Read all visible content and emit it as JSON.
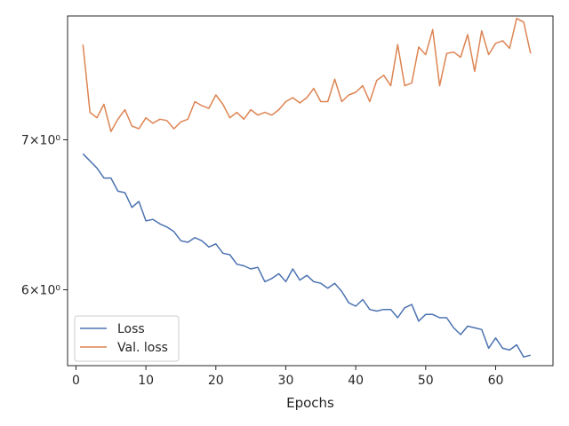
{
  "chart_data": {
    "type": "line",
    "title": "",
    "xlabel": "Epochs",
    "ylabel": "",
    "xlim": [
      -1.2,
      68.2
    ],
    "ylim": [
      5.55,
      7.95
    ],
    "yscale": "log",
    "grid": false,
    "legend": "lower-left",
    "x_ticks": [
      0,
      10,
      20,
      30,
      40,
      50,
      60
    ],
    "y_ticks": [
      {
        "value": 7.0,
        "label": "7×10⁰"
      },
      {
        "value": 6.0,
        "label": "6×10⁰"
      }
    ],
    "x": [
      1,
      2,
      3,
      4,
      5,
      6,
      7,
      8,
      9,
      10,
      11,
      12,
      13,
      14,
      15,
      16,
      17,
      18,
      19,
      20,
      21,
      22,
      23,
      24,
      25,
      26,
      27,
      28,
      29,
      30,
      31,
      32,
      33,
      34,
      35,
      36,
      37,
      38,
      39,
      40,
      41,
      42,
      43,
      44,
      45,
      46,
      47,
      48,
      49,
      50,
      51,
      52,
      53,
      54,
      55,
      56,
      57,
      58,
      59,
      60,
      61,
      62,
      63,
      64,
      65
    ],
    "series": [
      {
        "name": "Loss",
        "color": "#4c72b0",
        "values": [
          6.9,
          6.85,
          6.8,
          6.73,
          6.73,
          6.64,
          6.63,
          6.53,
          6.57,
          6.44,
          6.45,
          6.42,
          6.4,
          6.37,
          6.31,
          6.3,
          6.33,
          6.31,
          6.27,
          6.29,
          6.23,
          6.22,
          6.16,
          6.15,
          6.13,
          6.14,
          6.05,
          6.07,
          6.1,
          6.05,
          6.13,
          6.06,
          6.09,
          6.05,
          6.04,
          6.01,
          6.04,
          5.99,
          5.92,
          5.9,
          5.94,
          5.88,
          5.87,
          5.88,
          5.88,
          5.83,
          5.89,
          5.91,
          5.81,
          5.85,
          5.85,
          5.83,
          5.83,
          5.77,
          5.73,
          5.78,
          5.77,
          5.76,
          5.65,
          5.71,
          5.65,
          5.64,
          5.67,
          5.6,
          5.61
        ]
      },
      {
        "name": "Val. loss",
        "color": "#dd8452",
        "values": [
          7.72,
          7.2,
          7.16,
          7.26,
          7.06,
          7.15,
          7.22,
          7.1,
          7.08,
          7.16,
          7.12,
          7.15,
          7.14,
          7.08,
          7.13,
          7.15,
          7.28,
          7.25,
          7.23,
          7.33,
          7.26,
          7.16,
          7.2,
          7.15,
          7.22,
          7.18,
          7.2,
          7.18,
          7.22,
          7.28,
          7.31,
          7.27,
          7.31,
          7.38,
          7.28,
          7.28,
          7.45,
          7.28,
          7.33,
          7.35,
          7.4,
          7.28,
          7.44,
          7.48,
          7.4,
          7.72,
          7.4,
          7.42,
          7.7,
          7.64,
          7.84,
          7.4,
          7.65,
          7.66,
          7.62,
          7.8,
          7.51,
          7.83,
          7.64,
          7.73,
          7.75,
          7.69,
          7.93,
          7.9,
          7.65
        ]
      }
    ]
  }
}
